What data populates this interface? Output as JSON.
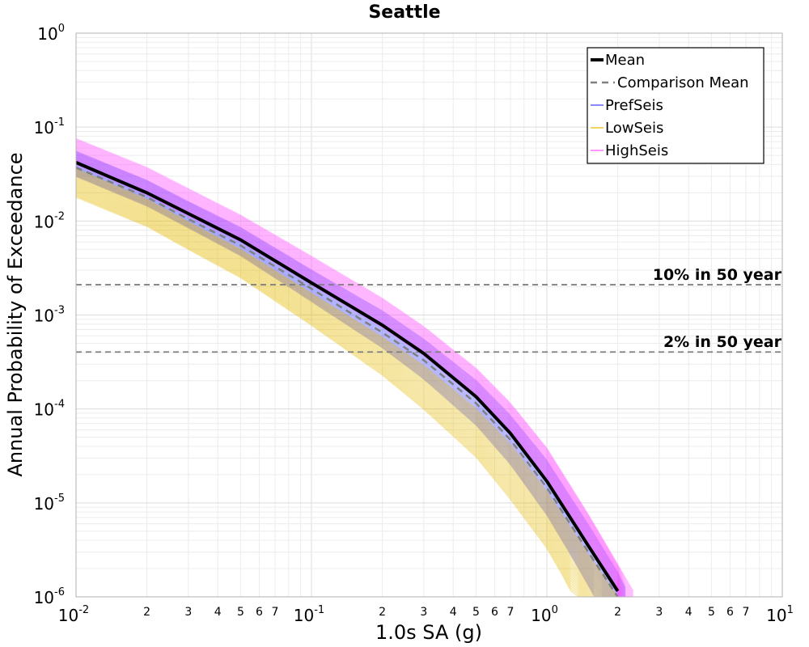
{
  "chart_data": {
    "type": "line",
    "title": "Seattle",
    "xlabel": "1.0s SA (g)",
    "ylabel": "Annual Probability of Exceedance",
    "x_scale": "log",
    "y_scale": "log",
    "xlim": [
      0.01,
      10
    ],
    "ylim": [
      1e-06,
      1
    ],
    "grid": true,
    "legend_position": "top-right",
    "x_ticks": [
      {
        "base": "10",
        "exp": "-2"
      },
      {
        "base": "10",
        "exp": "-1"
      },
      {
        "base": "10",
        "exp": "0"
      },
      {
        "base": "10",
        "exp": "1"
      }
    ],
    "x_minor_labels": [
      "2",
      "3",
      "4",
      "5",
      "6",
      "7"
    ],
    "y_ticks": [
      {
        "base": "10",
        "exp": "0"
      },
      {
        "base": "10",
        "exp": "-1"
      },
      {
        "base": "10",
        "exp": "-2"
      },
      {
        "base": "10",
        "exp": "-3"
      },
      {
        "base": "10",
        "exp": "-4"
      },
      {
        "base": "10",
        "exp": "-5"
      },
      {
        "base": "10",
        "exp": "-6"
      }
    ],
    "reference_lines": [
      {
        "label": "10% in 50 year",
        "y": 0.0021,
        "color": "#808080"
      },
      {
        "label": "2% in 50 year",
        "y": 0.000404,
        "color": "#808080"
      }
    ],
    "series": [
      {
        "name": "Mean",
        "color": "#000000",
        "style": "solid",
        "points": [
          [
            0.01,
            0.042
          ],
          [
            0.02,
            0.02
          ],
          [
            0.03,
            0.012
          ],
          [
            0.05,
            0.0063
          ],
          [
            0.1,
            0.0022
          ],
          [
            0.2,
            0.00078
          ],
          [
            0.3,
            0.00039
          ],
          [
            0.5,
            0.000135
          ],
          [
            0.7,
            5.5e-05
          ],
          [
            1.0,
            1.7e-05
          ],
          [
            1.5,
            3.5e-06
          ],
          [
            2.0,
            1.15e-06
          ]
        ]
      },
      {
        "name": "Comparison Mean",
        "color": "#808080",
        "style": "dashed",
        "points": [
          [
            0.01,
            0.037
          ],
          [
            0.02,
            0.018
          ],
          [
            0.03,
            0.0105
          ],
          [
            0.05,
            0.0055
          ],
          [
            0.1,
            0.0019
          ],
          [
            0.2,
            0.00065
          ],
          [
            0.3,
            0.00033
          ],
          [
            0.5,
            0.000115
          ],
          [
            0.7,
            4.7e-05
          ],
          [
            1.0,
            1.45e-05
          ],
          [
            1.5,
            3e-06
          ],
          [
            2.0,
            1e-06
          ]
        ]
      },
      {
        "name": "PrefSeis",
        "color": "#3a3cff",
        "style": "band",
        "upper": [
          [
            0.01,
            0.055
          ],
          [
            0.02,
            0.027
          ],
          [
            0.03,
            0.016
          ],
          [
            0.05,
            0.0085
          ],
          [
            0.1,
            0.003
          ],
          [
            0.2,
            0.0011
          ],
          [
            0.3,
            0.00055
          ],
          [
            0.5,
            0.0002
          ],
          [
            0.7,
            8.5e-05
          ],
          [
            1.0,
            2.8e-05
          ],
          [
            1.5,
            5.8e-06
          ],
          [
            2.0,
            1.8e-06
          ],
          [
            2.25,
            1e-06
          ]
        ],
        "lower": [
          [
            0.01,
            0.03
          ],
          [
            0.02,
            0.0145
          ],
          [
            0.03,
            0.0085
          ],
          [
            0.05,
            0.0043
          ],
          [
            0.1,
            0.0014
          ],
          [
            0.2,
            0.00045
          ],
          [
            0.3,
            0.00021
          ],
          [
            0.5,
            6.8e-05
          ],
          [
            0.7,
            2.6e-05
          ],
          [
            1.0,
            7.5e-06
          ],
          [
            1.3,
            2.5e-06
          ],
          [
            1.6,
            1e-06
          ]
        ]
      },
      {
        "name": "LowSeis",
        "color": "#e5b900",
        "style": "band",
        "upper": [
          [
            0.01,
            0.036
          ],
          [
            0.02,
            0.017
          ],
          [
            0.03,
            0.0098
          ],
          [
            0.05,
            0.005
          ],
          [
            0.1,
            0.0017
          ],
          [
            0.2,
            0.00058
          ],
          [
            0.3,
            0.00029
          ],
          [
            0.5,
            0.0001
          ],
          [
            0.7,
            4.2e-05
          ],
          [
            1.0,
            1.3e-05
          ],
          [
            1.5,
            2.8e-06
          ],
          [
            2.0,
            1e-06
          ]
        ],
        "lower": [
          [
            0.01,
            0.018
          ],
          [
            0.02,
            0.0088
          ],
          [
            0.03,
            0.005
          ],
          [
            0.05,
            0.0025
          ],
          [
            0.1,
            0.00078
          ],
          [
            0.2,
            0.00023
          ],
          [
            0.3,
            0.0001
          ],
          [
            0.5,
            3.1e-05
          ],
          [
            0.7,
            1.1e-05
          ],
          [
            1.0,
            3.3e-06
          ],
          [
            1.2,
            1.5e-06
          ],
          [
            1.3,
            1e-06
          ]
        ]
      },
      {
        "name": "HighSeis",
        "color": "#ff55ff",
        "style": "band",
        "upper": [
          [
            0.01,
            0.075
          ],
          [
            0.02,
            0.037
          ],
          [
            0.03,
            0.022
          ],
          [
            0.05,
            0.0115
          ],
          [
            0.1,
            0.0042
          ],
          [
            0.2,
            0.0015
          ],
          [
            0.3,
            0.00075
          ],
          [
            0.5,
            0.00027
          ],
          [
            0.7,
            0.000115
          ],
          [
            1.0,
            3.8e-05
          ],
          [
            1.5,
            7.5e-06
          ],
          [
            2.0,
            2.2e-06
          ],
          [
            2.4,
            1e-06
          ]
        ],
        "lower": [
          [
            0.01,
            0.04
          ],
          [
            0.02,
            0.019
          ],
          [
            0.03,
            0.0113
          ],
          [
            0.05,
            0.006
          ],
          [
            0.1,
            0.0021
          ],
          [
            0.2,
            0.00074
          ],
          [
            0.3,
            0.00037
          ],
          [
            0.5,
            0.00013
          ],
          [
            0.7,
            5.3e-05
          ],
          [
            1.0,
            1.65e-05
          ],
          [
            1.5,
            3.4e-06
          ],
          [
            2.0,
            1.1e-06
          ]
        ]
      }
    ]
  }
}
